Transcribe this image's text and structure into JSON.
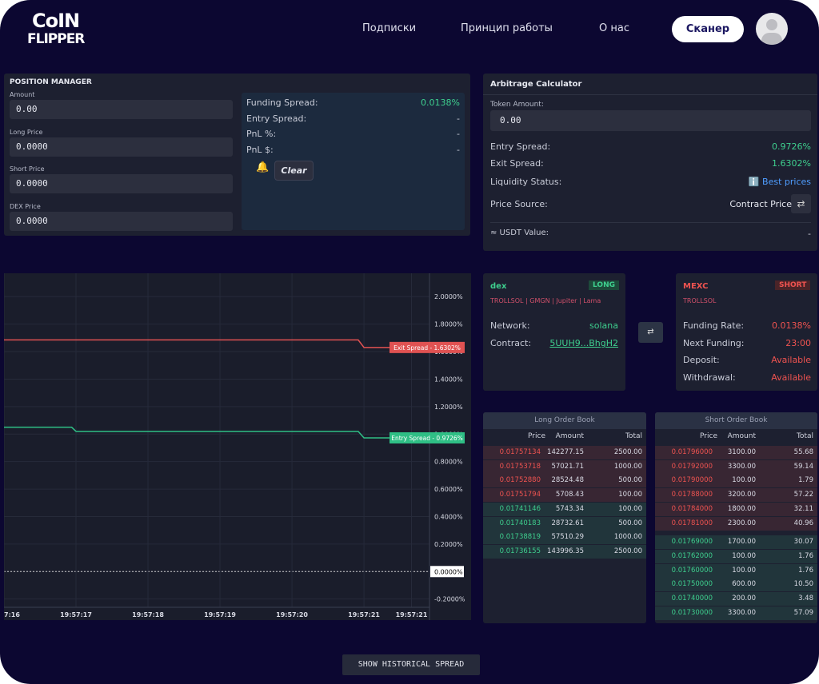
{
  "header": {
    "logo_line1": "CoIN",
    "logo_line2": "FLIPPER",
    "nav": [
      "Подписки",
      "Принцип работы",
      "О нас"
    ],
    "button": "Сканер"
  },
  "position_manager": {
    "title": "POSITION MANAGER",
    "fields": [
      {
        "label": "Amount",
        "value": "0.00"
      },
      {
        "label": "Long Price",
        "value": "0.0000"
      },
      {
        "label": "Short Price",
        "value": "0.0000"
      },
      {
        "label": "DEX Price",
        "value": "0.0000"
      }
    ],
    "stats": [
      {
        "label": "Funding Spread:",
        "value": "0.0138%"
      },
      {
        "label": "Entry Spread:",
        "value": "-"
      },
      {
        "label": "PnL %:",
        "value": "-"
      },
      {
        "label": "PnL $:",
        "value": "-"
      }
    ],
    "clear_button": "Clear"
  },
  "arbitrage_calculator": {
    "title": "Arbitrage Calculator",
    "token_label": "Token Amount:",
    "token_value": "0.00",
    "rows": [
      {
        "label": "Entry Spread:",
        "value": "0.9726%"
      },
      {
        "label": "Exit Spread:",
        "value": "1.6302%"
      },
      {
        "label": "Liquidity Status:",
        "value": "ℹ️ Best prices"
      },
      {
        "label": "Price Source:",
        "value": "Contract Price"
      }
    ],
    "usdt_label": "≈ USDT Value:",
    "usdt_value": "-"
  },
  "chart_data": {
    "type": "line",
    "xlim": [
      16,
      21.91
    ],
    "ylim": [
      -0.26,
      2.17
    ],
    "xticks": [
      {
        "value": 16,
        "label": "7:16"
      },
      {
        "value": 17,
        "label": "19:57:17"
      },
      {
        "value": 18,
        "label": "19:57:18"
      },
      {
        "value": 19,
        "label": "19:57:19"
      },
      {
        "value": 20,
        "label": "19:57:20"
      },
      {
        "value": 21,
        "label": "19:57:21"
      },
      {
        "value": 21.66,
        "label": "19:57:21"
      }
    ],
    "yticks": [
      {
        "value": 2,
        "label": "2.0000%"
      },
      {
        "value": 1.8,
        "label": "1.8000%"
      },
      {
        "value": 1.6,
        "label": "1.6000%"
      },
      {
        "value": 1.4,
        "label": "1.4000%"
      },
      {
        "value": 1.2,
        "label": "1.2000%"
      },
      {
        "value": 1,
        "label": "1.0000%"
      },
      {
        "value": 0.8,
        "label": "0.8000%"
      },
      {
        "value": 0.6,
        "label": "0.6000%"
      },
      {
        "value": 0.4,
        "label": "0.4000%"
      },
      {
        "value": 0.2,
        "label": "0.2000%"
      },
      {
        "value": 0,
        "label": "0.0000%"
      },
      {
        "value": -0.2,
        "label": "-0.2000%"
      }
    ],
    "series": [
      {
        "name": "Exit Spread",
        "color": "#e05252",
        "x": [
          16,
          20.92,
          21,
          21.91
        ],
        "values": [
          1.685,
          1.685,
          1.6302,
          1.6302
        ],
        "end_label": "Exit Spread - 1.6302%"
      },
      {
        "name": "Entry Spread",
        "color": "#2fbf85",
        "x": [
          16,
          16.94,
          17,
          20.92,
          21,
          21.91
        ],
        "values": [
          1.05,
          1.05,
          1.02,
          1.02,
          0.9726,
          0.9726
        ],
        "end_label": "Entry Spread - 0.9726%"
      }
    ]
  },
  "dex_card": {
    "name": "dex",
    "badge": "LONG",
    "token": "TROLLSOL | GMGN | Jupiter | Lama",
    "rows": [
      {
        "label": "Network:",
        "value": "solana"
      },
      {
        "label": "Contract:",
        "value": "5UUH9...BhgH2"
      }
    ]
  },
  "cex_card": {
    "name": "MEXC",
    "badge": "SHORT",
    "token": "TROLLSOL",
    "rows": [
      {
        "label": "Funding Rate:",
        "value": "0.0138%"
      },
      {
        "label": "Next Funding:",
        "value": "23:00"
      },
      {
        "label": "Deposit:",
        "value": "Available"
      },
      {
        "label": "Withdrawal:",
        "value": "Available"
      }
    ]
  },
  "long_book": {
    "title": "Long Order Book",
    "columns": [
      "Price",
      "Amount",
      "Total"
    ],
    "asks": [
      [
        "0.01757134",
        "142277.15",
        "2500.00"
      ],
      [
        "0.01753718",
        "57021.71",
        "1000.00"
      ],
      [
        "0.01752880",
        "28524.48",
        "500.00"
      ],
      [
        "0.01751794",
        "5708.43",
        "100.00"
      ]
    ],
    "bids": [
      [
        "0.01741146",
        "5743.34",
        "100.00"
      ],
      [
        "0.01740183",
        "28732.61",
        "500.00"
      ],
      [
        "0.01738819",
        "57510.29",
        "1000.00"
      ],
      [
        "0.01736155",
        "143996.35",
        "2500.00"
      ]
    ]
  },
  "short_book": {
    "title": "Short Order Book",
    "columns": [
      "Price",
      "Amount",
      "Total"
    ],
    "asks": [
      [
        "0.01796000",
        "3100.00",
        "55.68"
      ],
      [
        "0.01792000",
        "3300.00",
        "59.14"
      ],
      [
        "0.01790000",
        "100.00",
        "1.79"
      ],
      [
        "0.01788000",
        "3200.00",
        "57.22"
      ],
      [
        "0.01784000",
        "1800.00",
        "32.11"
      ],
      [
        "0.01781000",
        "2300.00",
        "40.96"
      ]
    ],
    "bids": [
      [
        "0.01769000",
        "1700.00",
        "30.07"
      ],
      [
        "0.01762000",
        "100.00",
        "1.76"
      ],
      [
        "0.01760000",
        "100.00",
        "1.76"
      ],
      [
        "0.01750000",
        "600.00",
        "10.50"
      ],
      [
        "0.01740000",
        "200.00",
        "3.48"
      ],
      [
        "0.01730000",
        "3300.00",
        "57.09"
      ]
    ]
  },
  "footer_button": "SHOW HISTORICAL SPREAD"
}
